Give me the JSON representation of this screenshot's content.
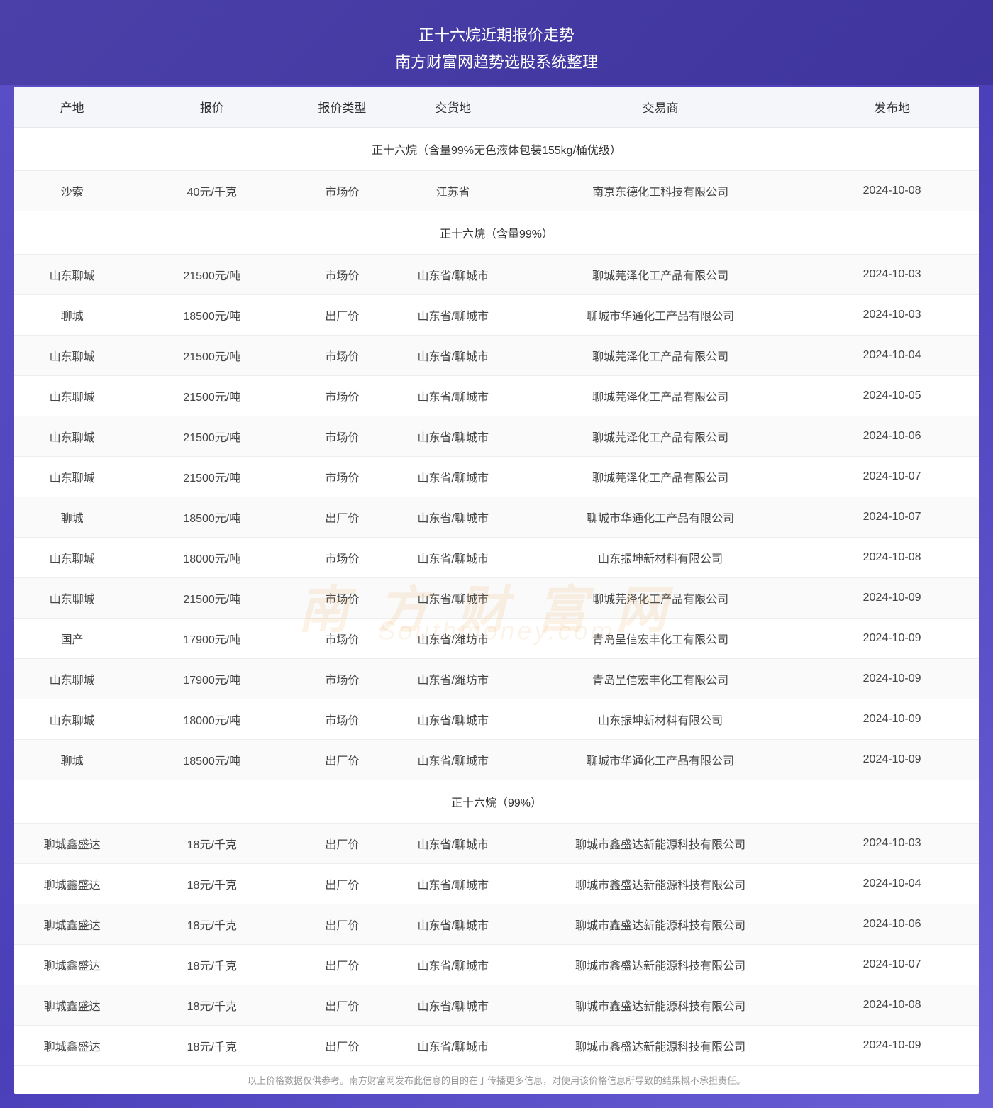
{
  "header": {
    "title": "正十六烷近期报价走势",
    "subtitle": "南方财富网趋势选股系统整理"
  },
  "table": {
    "columns": [
      "产地",
      "报价",
      "报价类型",
      "交货地",
      "交易商",
      "发布地"
    ],
    "column_widths": [
      "12%",
      "17%",
      "10%",
      "13%",
      "30%",
      "18%"
    ],
    "sections": [
      {
        "title": "正十六烷（含量99%无色液体包装155kg/桶优级）",
        "rows": [
          [
            "沙索",
            "40元/千克",
            "市场价",
            "江苏省",
            "南京东德化工科技有限公司",
            "2024-10-08"
          ]
        ]
      },
      {
        "title": "正十六烷（含量99%）",
        "rows": [
          [
            "山东聊城",
            "21500元/吨",
            "市场价",
            "山东省/聊城市",
            "聊城芫泽化工产品有限公司",
            "2024-10-03"
          ],
          [
            "聊城",
            "18500元/吨",
            "出厂价",
            "山东省/聊城市",
            "聊城市华通化工产品有限公司",
            "2024-10-03"
          ],
          [
            "山东聊城",
            "21500元/吨",
            "市场价",
            "山东省/聊城市",
            "聊城芫泽化工产品有限公司",
            "2024-10-04"
          ],
          [
            "山东聊城",
            "21500元/吨",
            "市场价",
            "山东省/聊城市",
            "聊城芫泽化工产品有限公司",
            "2024-10-05"
          ],
          [
            "山东聊城",
            "21500元/吨",
            "市场价",
            "山东省/聊城市",
            "聊城芫泽化工产品有限公司",
            "2024-10-06"
          ],
          [
            "山东聊城",
            "21500元/吨",
            "市场价",
            "山东省/聊城市",
            "聊城芫泽化工产品有限公司",
            "2024-10-07"
          ],
          [
            "聊城",
            "18500元/吨",
            "出厂价",
            "山东省/聊城市",
            "聊城市华通化工产品有限公司",
            "2024-10-07"
          ],
          [
            "山东聊城",
            "18000元/吨",
            "市场价",
            "山东省/聊城市",
            "山东振坤新材料有限公司",
            "2024-10-08"
          ],
          [
            "山东聊城",
            "21500元/吨",
            "市场价",
            "山东省/聊城市",
            "聊城芫泽化工产品有限公司",
            "2024-10-09"
          ],
          [
            "国产",
            "17900元/吨",
            "市场价",
            "山东省/潍坊市",
            "青岛呈信宏丰化工有限公司",
            "2024-10-09"
          ],
          [
            "山东聊城",
            "17900元/吨",
            "市场价",
            "山东省/潍坊市",
            "青岛呈信宏丰化工有限公司",
            "2024-10-09"
          ],
          [
            "山东聊城",
            "18000元/吨",
            "市场价",
            "山东省/聊城市",
            "山东振坤新材料有限公司",
            "2024-10-09"
          ],
          [
            "聊城",
            "18500元/吨",
            "出厂价",
            "山东省/聊城市",
            "聊城市华通化工产品有限公司",
            "2024-10-09"
          ]
        ]
      },
      {
        "title": "正十六烷（99%）",
        "rows": [
          [
            "聊城鑫盛达",
            "18元/千克",
            "出厂价",
            "山东省/聊城市",
            "聊城市鑫盛达新能源科技有限公司",
            "2024-10-03"
          ],
          [
            "聊城鑫盛达",
            "18元/千克",
            "出厂价",
            "山东省/聊城市",
            "聊城市鑫盛达新能源科技有限公司",
            "2024-10-04"
          ],
          [
            "聊城鑫盛达",
            "18元/千克",
            "出厂价",
            "山东省/聊城市",
            "聊城市鑫盛达新能源科技有限公司",
            "2024-10-06"
          ],
          [
            "聊城鑫盛达",
            "18元/千克",
            "出厂价",
            "山东省/聊城市",
            "聊城市鑫盛达新能源科技有限公司",
            "2024-10-07"
          ],
          [
            "聊城鑫盛达",
            "18元/千克",
            "出厂价",
            "山东省/聊城市",
            "聊城市鑫盛达新能源科技有限公司",
            "2024-10-08"
          ],
          [
            "聊城鑫盛达",
            "18元/千克",
            "出厂价",
            "山东省/聊城市",
            "聊城市鑫盛达新能源科技有限公司",
            "2024-10-09"
          ]
        ]
      }
    ]
  },
  "footer": {
    "note": "以上价格数据仅供参考。南方财富网发布此信息的目的在于传播更多信息，对使用该价格信息所导致的结果概不承担责任。"
  },
  "watermark": {
    "main": "南方财富网",
    "sub": "Southmoney.com"
  },
  "styling": {
    "background_gradient": [
      "#5b4fc7",
      "#4a3fb8",
      "#6b5fd7"
    ],
    "header_bg": "#f5f6fa",
    "border_color": "#e8e8e8",
    "text_color": "#333333",
    "cell_text_color": "#444444",
    "footer_text_color": "#999999",
    "watermark_color": "rgba(230, 150, 50, 0.12)",
    "title_fontsize": 22,
    "header_fontsize": 17,
    "cell_fontsize": 16,
    "footer_fontsize": 13
  }
}
